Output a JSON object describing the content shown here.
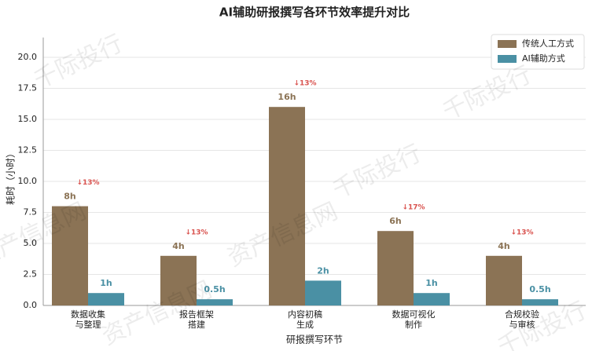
{
  "chart_data": {
    "type": "bar",
    "title": "AI辅助研报撰写各环节效率提升对比",
    "xlabel": "研报撰写环节",
    "ylabel": "耗时（小时）",
    "categories": [
      "数据收集\n与整理",
      "报告框架\n搭建",
      "内容初稿\n生成",
      "数据可视化\n制作",
      "合规校验\n与审核"
    ],
    "series": [
      {
        "name": "传统人工方式",
        "color": "#8b7355",
        "values": [
          8,
          4,
          16,
          6,
          4
        ],
        "value_labels": [
          "8h",
          "4h",
          "16h",
          "6h",
          "4h"
        ]
      },
      {
        "name": "AI辅助方式",
        "color": "#4a90a4",
        "values": [
          1,
          0.5,
          2,
          1,
          0.5
        ],
        "value_labels": [
          "1h",
          "0.5h",
          "2h",
          "1h",
          "0.5h"
        ]
      }
    ],
    "annotations": [
      "↓13%",
      "↓13%",
      "↓13%",
      "↓17%",
      "↓13%"
    ],
    "ylim": [
      0,
      21.6
    ],
    "yticks": [
      {
        "value": 0,
        "label": "0.0"
      },
      2.5,
      {
        "value": 5,
        "label": "5.0"
      },
      7.5,
      {
        "value": 10,
        "label": "10.0"
      },
      12.5,
      {
        "value": 15,
        "label": "15.0"
      },
      17.5,
      {
        "value": 20,
        "label": "20.0"
      }
    ],
    "grid": true,
    "legend": "upper right",
    "watermarks": [
      "千际投行",
      "资产信息网"
    ]
  }
}
